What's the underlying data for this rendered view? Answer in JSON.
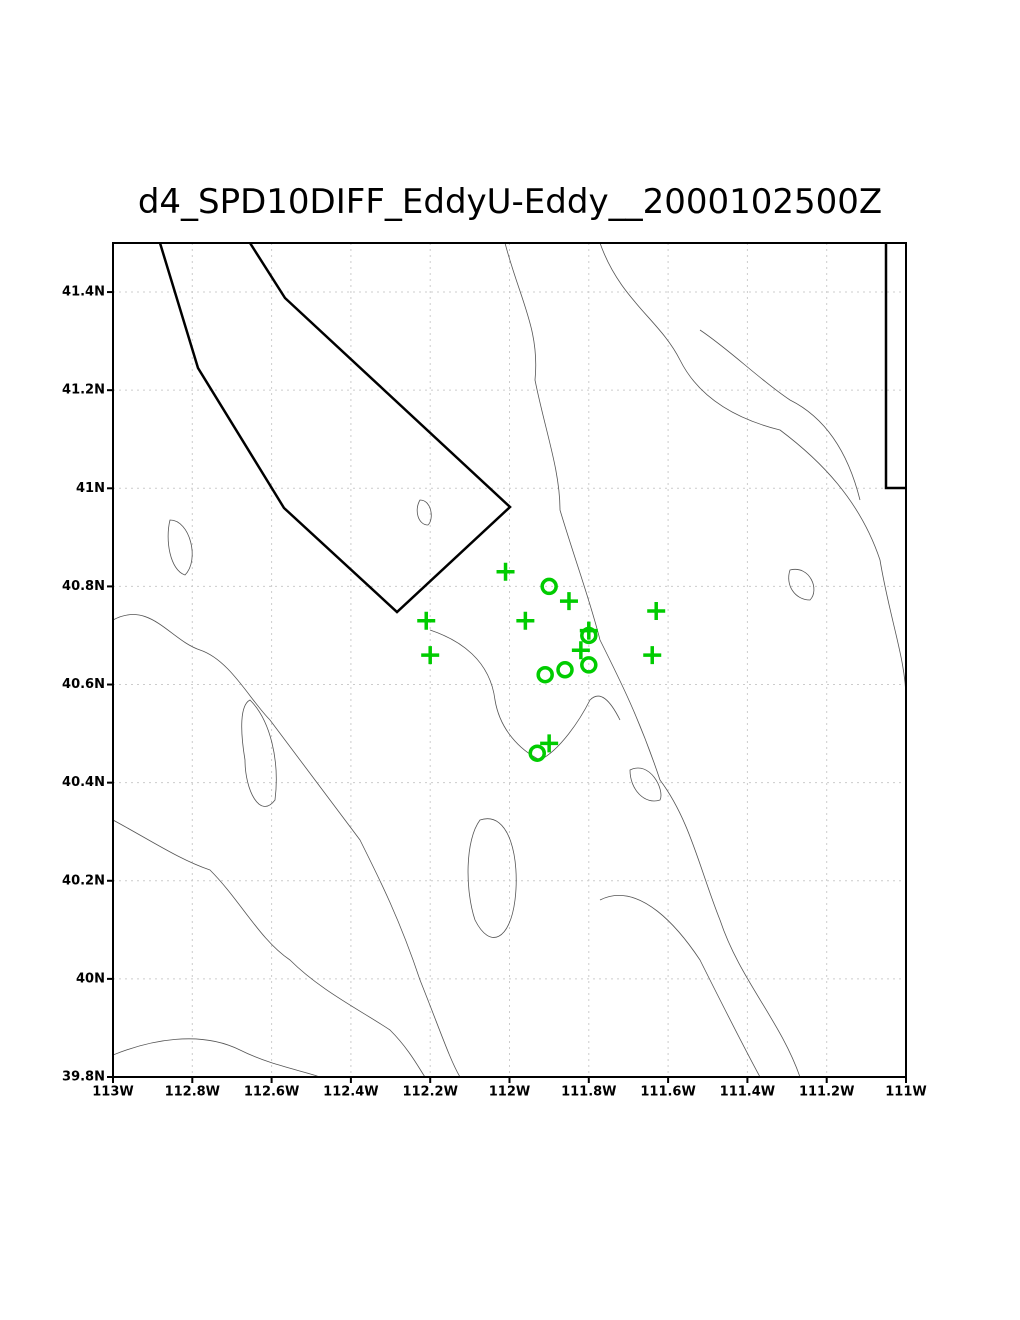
{
  "chart_data": {
    "type": "scatter",
    "title": "d4_SPD10DIFF_EddyU-Eddy__2000102500Z",
    "xlim": [
      -113,
      -111
    ],
    "ylim": [
      39.8,
      41.5
    ],
    "xticks": [
      {
        "value": -113,
        "label": "113W"
      },
      {
        "value": -112.8,
        "label": "112.8W"
      },
      {
        "value": -112.6,
        "label": "112.6W"
      },
      {
        "value": -112.4,
        "label": "112.4W"
      },
      {
        "value": -112.2,
        "label": "112.2W"
      },
      {
        "value": -112,
        "label": "112W"
      },
      {
        "value": -111.8,
        "label": "111.8W"
      },
      {
        "value": -111.6,
        "label": "111.6W"
      },
      {
        "value": -111.4,
        "label": "111.4W"
      },
      {
        "value": -111.2,
        "label": "111.2W"
      },
      {
        "value": -111,
        "label": "111W"
      }
    ],
    "yticks": [
      {
        "value": 39.8,
        "label": "39.8N"
      },
      {
        "value": 40,
        "label": "40N"
      },
      {
        "value": 40.2,
        "label": "40.2N"
      },
      {
        "value": 40.4,
        "label": "40.4N"
      },
      {
        "value": 40.6,
        "label": "40.6N"
      },
      {
        "value": 40.8,
        "label": "40.8N"
      },
      {
        "value": 41,
        "label": "41N"
      },
      {
        "value": 41.2,
        "label": "41.2N"
      },
      {
        "value": 41.4,
        "label": "41.4N"
      }
    ],
    "grid": true,
    "series": [
      {
        "marker": "plus",
        "color": "#00cc00",
        "x": [
          -112.01,
          -111.85,
          -111.63,
          -112.21,
          -111.96,
          -111.8,
          -111.82,
          -112.2,
          -111.64,
          -111.9
        ],
        "values": [
          40.83,
          40.77,
          40.75,
          40.73,
          40.73,
          40.71,
          40.67,
          40.66,
          40.66,
          40.48
        ]
      },
      {
        "marker": "circle",
        "color": "#00cc00",
        "x": [
          -111.9,
          -111.8,
          -111.86,
          -111.91,
          -111.8,
          -111.93
        ],
        "values": [
          40.8,
          40.7,
          40.63,
          40.62,
          40.64,
          40.46
        ]
      }
    ]
  }
}
